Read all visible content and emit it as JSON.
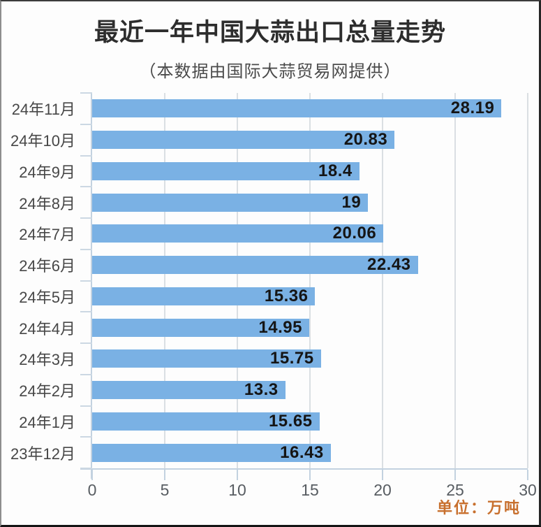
{
  "title": "最近一年中国大蒜出口总量走势",
  "subtitle": "（本数据由国际大蒜贸易网提供）",
  "unit_note": "单位：万吨",
  "colors": {
    "bar": "#7ab1e4",
    "unit_note": "#c8702e",
    "axis": "#c3d2e0",
    "gridline": "#dadfe3",
    "value_label": "#151515",
    "category_label": "#474747",
    "tick_label": "#585d62"
  },
  "chart_data": {
    "type": "bar",
    "orientation": "horizontal",
    "title": "最近一年中国大蒜出口总量走势",
    "subtitle": "（本数据由国际大蒜贸易网提供）",
    "unit": "万吨",
    "categories": [
      "24年11月",
      "24年10月",
      "24年9月",
      "24年8月",
      "24年7月",
      "24年6月",
      "24年5月",
      "24年4月",
      "24年3月",
      "24年2月",
      "24年1月",
      "23年12月"
    ],
    "values": [
      28.19,
      20.83,
      18.4,
      19,
      20.06,
      22.43,
      15.36,
      14.95,
      15.75,
      13.3,
      15.65,
      16.43
    ],
    "value_labels": [
      "28.19",
      "20.83",
      "18.4",
      "19",
      "20.06",
      "22.43",
      "15.36",
      "14.95",
      "15.75",
      "13.3",
      "15.65",
      "16.43"
    ],
    "x_ticks": [
      0,
      5,
      10,
      15,
      20,
      25,
      30
    ],
    "xlim": [
      0,
      30
    ],
    "grid": true,
    "legend": false,
    "value_label_position": "inside-end"
  }
}
